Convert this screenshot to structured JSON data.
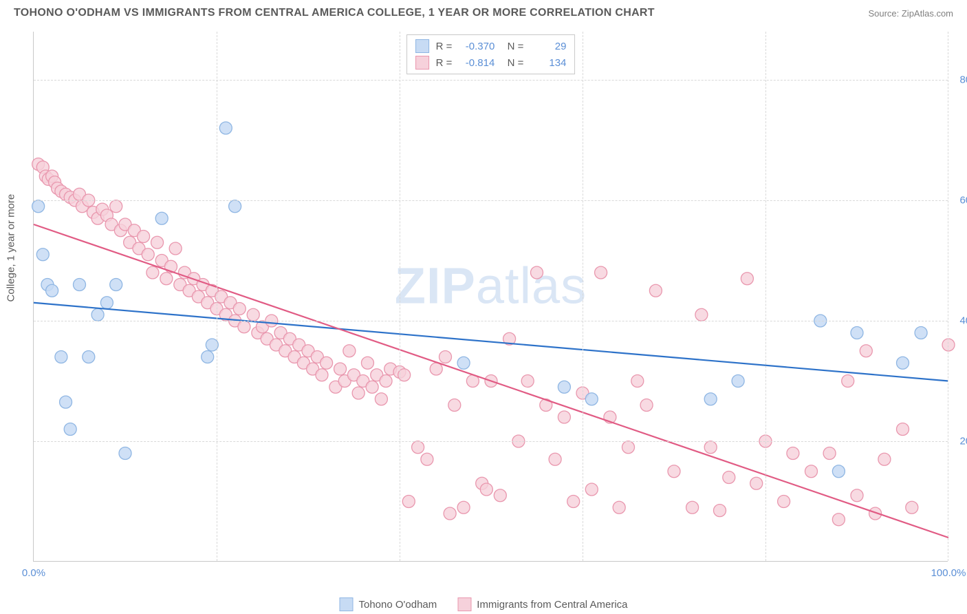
{
  "header": {
    "title": "TOHONO O'ODHAM VS IMMIGRANTS FROM CENTRAL AMERICA COLLEGE, 1 YEAR OR MORE CORRELATION CHART",
    "source": "Source: ZipAtlas.com"
  },
  "chart": {
    "type": "scatter",
    "y_axis_label": "College, 1 year or more",
    "watermark": {
      "bold": "ZIP",
      "light": "atlas"
    },
    "xlim": [
      0,
      100
    ],
    "ylim": [
      0,
      88
    ],
    "x_ticks": [
      0,
      20,
      40,
      60,
      80,
      100
    ],
    "x_tick_labels": [
      "0.0%",
      "",
      "",
      "",
      "",
      "100.0%"
    ],
    "y_ticks": [
      20,
      40,
      60,
      80
    ],
    "y_tick_labels": [
      "20.0%",
      "40.0%",
      "60.0%",
      "80.0%"
    ],
    "background_color": "#ffffff",
    "grid_color": "#d8d8d8",
    "axis_color": "#c8c8c8",
    "tick_label_color": "#5b8fd6",
    "axis_label_color": "#5a5a5a",
    "series": [
      {
        "name": "Tohono O'odham",
        "r_value": "-0.370",
        "n_value": "29",
        "marker_fill": "#c7dbf4",
        "marker_stroke": "#8fb6e3",
        "marker_radius": 9,
        "marker_opacity": 0.85,
        "line_color": "#2d72c9",
        "line_width": 2.2,
        "trend": {
          "x1": 0,
          "y1": 43,
          "x2": 100,
          "y2": 30
        },
        "points": [
          [
            0.5,
            59
          ],
          [
            1,
            51
          ],
          [
            1.5,
            46
          ],
          [
            2,
            45
          ],
          [
            3,
            34
          ],
          [
            3.5,
            26.5
          ],
          [
            4,
            22
          ],
          [
            5,
            46
          ],
          [
            6,
            34
          ],
          [
            7,
            41
          ],
          [
            8,
            43
          ],
          [
            9,
            46
          ],
          [
            10,
            18
          ],
          [
            14,
            57
          ],
          [
            19,
            34
          ],
          [
            19.5,
            36
          ],
          [
            21,
            72
          ],
          [
            22,
            59
          ],
          [
            47,
            33
          ],
          [
            58,
            29
          ],
          [
            61,
            27
          ],
          [
            74,
            27
          ],
          [
            77,
            30
          ],
          [
            86,
            40
          ],
          [
            88,
            15
          ],
          [
            90,
            38
          ],
          [
            95,
            33
          ],
          [
            97,
            38
          ]
        ]
      },
      {
        "name": "Immigrants from Central America",
        "r_value": "-0.814",
        "n_value": "134",
        "marker_fill": "#f6d1db",
        "marker_stroke": "#e997ae",
        "marker_radius": 9,
        "marker_opacity": 0.8,
        "line_color": "#e15b84",
        "line_width": 2.2,
        "trend": {
          "x1": 0,
          "y1": 56,
          "x2": 100,
          "y2": 4
        },
        "points": [
          [
            0.5,
            66
          ],
          [
            1,
            65.5
          ],
          [
            1.3,
            64
          ],
          [
            1.6,
            63.5
          ],
          [
            2,
            64
          ],
          [
            2.3,
            63
          ],
          [
            2.6,
            62
          ],
          [
            3,
            61.5
          ],
          [
            3.5,
            61
          ],
          [
            4,
            60.5
          ],
          [
            4.5,
            60
          ],
          [
            5,
            61
          ],
          [
            5.3,
            59
          ],
          [
            6,
            60
          ],
          [
            6.5,
            58
          ],
          [
            7,
            57
          ],
          [
            7.5,
            58.5
          ],
          [
            8,
            57.5
          ],
          [
            8.5,
            56
          ],
          [
            9,
            59
          ],
          [
            9.5,
            55
          ],
          [
            10,
            56
          ],
          [
            10.5,
            53
          ],
          [
            11,
            55
          ],
          [
            11.5,
            52
          ],
          [
            12,
            54
          ],
          [
            12.5,
            51
          ],
          [
            13,
            48
          ],
          [
            13.5,
            53
          ],
          [
            14,
            50
          ],
          [
            14.5,
            47
          ],
          [
            15,
            49
          ],
          [
            15.5,
            52
          ],
          [
            16,
            46
          ],
          [
            16.5,
            48
          ],
          [
            17,
            45
          ],
          [
            17.5,
            47
          ],
          [
            18,
            44
          ],
          [
            18.5,
            46
          ],
          [
            19,
            43
          ],
          [
            19.5,
            45
          ],
          [
            20,
            42
          ],
          [
            20.5,
            44
          ],
          [
            21,
            41
          ],
          [
            21.5,
            43
          ],
          [
            22,
            40
          ],
          [
            22.5,
            42
          ],
          [
            23,
            39
          ],
          [
            24,
            41
          ],
          [
            24.5,
            38
          ],
          [
            25,
            39
          ],
          [
            25.5,
            37
          ],
          [
            26,
            40
          ],
          [
            26.5,
            36
          ],
          [
            27,
            38
          ],
          [
            27.5,
            35
          ],
          [
            28,
            37
          ],
          [
            28.5,
            34
          ],
          [
            29,
            36
          ],
          [
            29.5,
            33
          ],
          [
            30,
            35
          ],
          [
            30.5,
            32
          ],
          [
            31,
            34
          ],
          [
            31.5,
            31
          ],
          [
            32,
            33
          ],
          [
            33,
            29
          ],
          [
            33.5,
            32
          ],
          [
            34,
            30
          ],
          [
            34.5,
            35
          ],
          [
            35,
            31
          ],
          [
            35.5,
            28
          ],
          [
            36,
            30
          ],
          [
            36.5,
            33
          ],
          [
            37,
            29
          ],
          [
            37.5,
            31
          ],
          [
            38,
            27
          ],
          [
            38.5,
            30
          ],
          [
            39,
            32
          ],
          [
            40,
            31.5
          ],
          [
            40.5,
            31
          ],
          [
            41,
            10
          ],
          [
            42,
            19
          ],
          [
            43,
            17
          ],
          [
            44,
            32
          ],
          [
            45,
            34
          ],
          [
            45.5,
            8
          ],
          [
            46,
            26
          ],
          [
            47,
            9
          ],
          [
            48,
            30
          ],
          [
            49,
            13
          ],
          [
            49.5,
            12
          ],
          [
            50,
            30
          ],
          [
            51,
            11
          ],
          [
            52,
            37
          ],
          [
            53,
            20
          ],
          [
            54,
            30
          ],
          [
            55,
            48
          ],
          [
            56,
            26
          ],
          [
            57,
            17
          ],
          [
            58,
            24
          ],
          [
            59,
            10
          ],
          [
            60,
            28
          ],
          [
            61,
            12
          ],
          [
            62,
            48
          ],
          [
            63,
            24
          ],
          [
            64,
            9
          ],
          [
            65,
            19
          ],
          [
            66,
            30
          ],
          [
            67,
            26
          ],
          [
            68,
            45
          ],
          [
            70,
            15
          ],
          [
            72,
            9
          ],
          [
            73,
            41
          ],
          [
            74,
            19
          ],
          [
            75,
            8.5
          ],
          [
            76,
            14
          ],
          [
            78,
            47
          ],
          [
            79,
            13
          ],
          [
            80,
            20
          ],
          [
            82,
            10
          ],
          [
            83,
            18
          ],
          [
            85,
            15
          ],
          [
            87,
            18
          ],
          [
            88,
            7
          ],
          [
            89,
            30
          ],
          [
            90,
            11
          ],
          [
            91,
            35
          ],
          [
            92,
            8
          ],
          [
            93,
            17
          ],
          [
            95,
            22
          ],
          [
            96,
            9
          ],
          [
            100,
            36
          ]
        ]
      }
    ],
    "legend_bottom": [
      {
        "label": "Tohono O'odham",
        "fill": "#c7dbf4",
        "stroke": "#8fb6e3"
      },
      {
        "label": "Immigrants from Central America",
        "fill": "#f6d1db",
        "stroke": "#e997ae"
      }
    ]
  }
}
